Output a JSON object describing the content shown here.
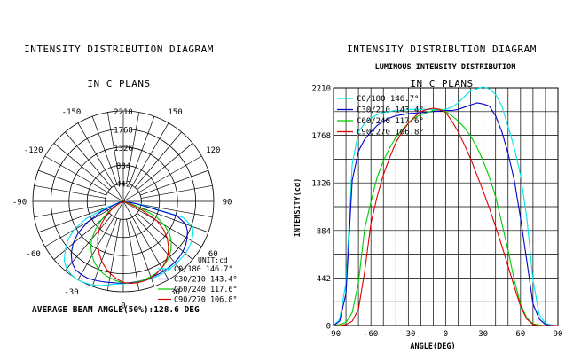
{
  "left_header": {
    "line1": "INTENSITY DISTRIBUTION DIAGRAM",
    "line2": "IN C PLANS"
  },
  "right_header": {
    "line1": "INTENSITY DISTRIBUTION DIAGRAM",
    "line2": "IN C PLANS"
  },
  "colors": {
    "c0": "#00e5e5",
    "c30": "#0000cc",
    "c60": "#00cc00",
    "c90": "#dd0000",
    "grid": "#000000"
  },
  "chart_data": [
    {
      "type": "polar",
      "angle_labels": [
        "-150",
        "150",
        "-120",
        "120",
        "-90",
        "90",
        "-60",
        "60",
        "-30",
        "30",
        "0"
      ],
      "radial_labels": [
        "2210",
        "1768",
        "1326",
        "884",
        "442"
      ],
      "rmax": 2210,
      "unit_label": "UNIT:cd",
      "footer": "AVERAGE BEAM ANGLE(50%):128.6 DEG",
      "legend": [
        {
          "key": "c0",
          "label": "C0/180 146.7°"
        },
        {
          "key": "c30",
          "label": "C30/210 143.4°"
        },
        {
          "key": "c60",
          "label": "C60/240 117.6°"
        },
        {
          "key": "c90",
          "label": "C90/270 106.8°"
        }
      ]
    },
    {
      "type": "line",
      "title": "LUMINOUS INTENSITY DISTRIBUTION",
      "xlabel": "ANGLE(DEG)",
      "ylabel": "INTENSITY(cd)",
      "xlim": [
        -90,
        90
      ],
      "ylim": [
        0,
        2210
      ],
      "xticks": [
        "-90",
        "-60",
        "-30",
        "0",
        "30",
        "60",
        "90"
      ],
      "yticks": [
        "0",
        "442",
        "884",
        "1326",
        "1768",
        "2210"
      ],
      "legend_position": "top-left",
      "series": [
        {
          "key": "c0",
          "name": "C0/180 146.7°",
          "x": [
            -90,
            -85,
            -80,
            -75,
            -70,
            -65,
            -60,
            -55,
            -50,
            -45,
            -40,
            -35,
            -30,
            -25,
            -20,
            -15,
            -10,
            -5,
            0,
            5,
            10,
            15,
            20,
            25,
            30,
            35,
            40,
            45,
            50,
            55,
            60,
            65,
            70,
            75,
            80,
            85,
            90
          ],
          "y": [
            0,
            60,
            400,
            1500,
            1800,
            1880,
            1930,
            1960,
            1980,
            1990,
            2000,
            2000,
            2010,
            2010,
            2010,
            2010,
            2010,
            2010,
            2010,
            2030,
            2070,
            2130,
            2180,
            2200,
            2220,
            2200,
            2150,
            2040,
            1850,
            1650,
            1400,
            1000,
            420,
            100,
            20,
            5,
            0
          ]
        },
        {
          "key": "c30",
          "name": "C30/210 143.4°",
          "x": [
            -90,
            -85,
            -80,
            -75,
            -70,
            -65,
            -60,
            -55,
            -50,
            -45,
            -40,
            -35,
            -30,
            -25,
            -20,
            -15,
            -10,
            -5,
            0,
            5,
            10,
            15,
            20,
            25,
            30,
            35,
            40,
            45,
            50,
            55,
            60,
            65,
            70,
            75,
            80,
            85,
            90
          ],
          "y": [
            0,
            40,
            300,
            1350,
            1620,
            1730,
            1800,
            1860,
            1900,
            1930,
            1950,
            1960,
            1970,
            1975,
            1980,
            1985,
            1990,
            1995,
            2000,
            2000,
            2010,
            2030,
            2050,
            2070,
            2060,
            2040,
            1950,
            1800,
            1600,
            1350,
            1000,
            600,
            200,
            60,
            10,
            0,
            0
          ]
        },
        {
          "key": "c60",
          "name": "C60/240 117.6°",
          "x": [
            -90,
            -85,
            -80,
            -75,
            -70,
            -65,
            -60,
            -55,
            -50,
            -45,
            -40,
            -35,
            -30,
            -25,
            -20,
            -15,
            -10,
            -5,
            0,
            5,
            10,
            15,
            20,
            25,
            30,
            35,
            40,
            45,
            50,
            55,
            60,
            65,
            70,
            75,
            80,
            85,
            90
          ],
          "y": [
            0,
            10,
            30,
            120,
            400,
            900,
            1150,
            1380,
            1530,
            1650,
            1750,
            1820,
            1880,
            1930,
            1960,
            1980,
            2000,
            2010,
            1990,
            1950,
            1900,
            1840,
            1760,
            1660,
            1530,
            1380,
            1200,
            950,
            700,
            420,
            200,
            70,
            15,
            5,
            0,
            0,
            0
          ]
        },
        {
          "key": "c90",
          "name": "C90/270 106.8°",
          "x": [
            -90,
            -85,
            -80,
            -75,
            -70,
            -65,
            -60,
            -55,
            -50,
            -45,
            -40,
            -35,
            -30,
            -25,
            -20,
            -15,
            -10,
            -5,
            0,
            5,
            10,
            15,
            20,
            25,
            30,
            35,
            40,
            45,
            50,
            55,
            60,
            65,
            70,
            75,
            80,
            85,
            90
          ],
          "y": [
            0,
            0,
            10,
            40,
            150,
            500,
            950,
            1200,
            1400,
            1560,
            1700,
            1800,
            1880,
            1940,
            1990,
            2010,
            2020,
            2010,
            1980,
            1900,
            1800,
            1680,
            1550,
            1400,
            1250,
            1090,
            920,
            740,
            550,
            360,
            180,
            60,
            10,
            0,
            0,
            0,
            0
          ]
        }
      ]
    }
  ]
}
